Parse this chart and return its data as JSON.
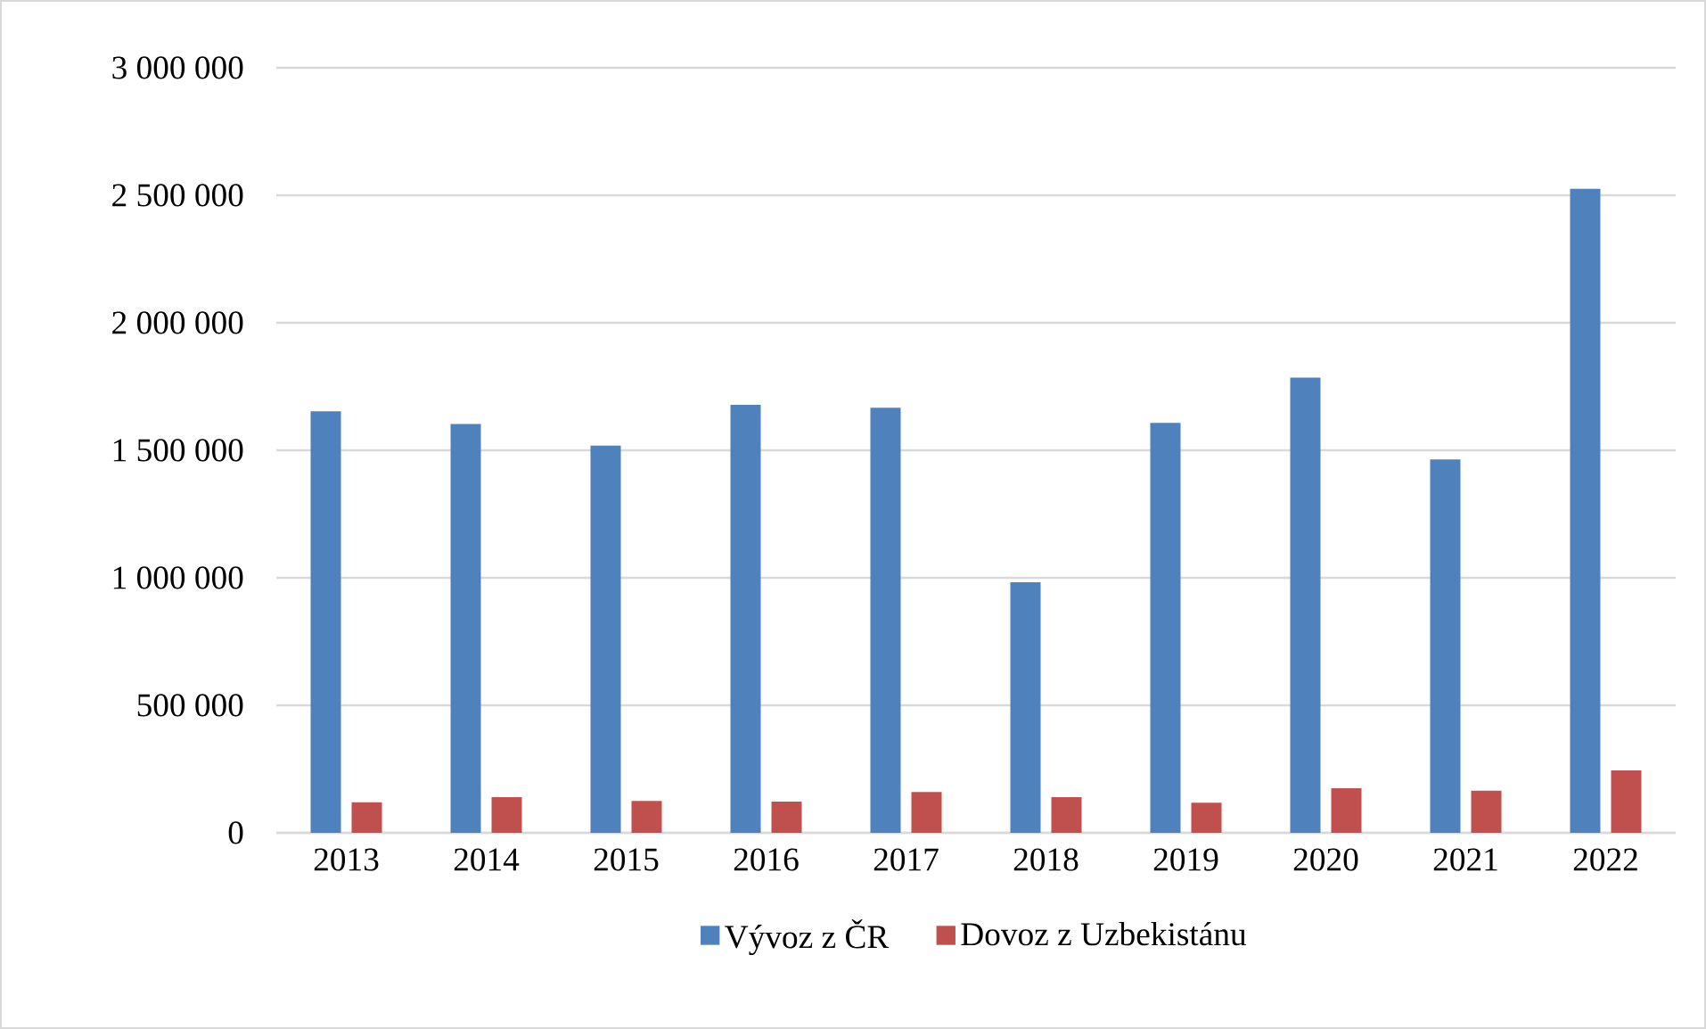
{
  "chart_data": {
    "type": "bar",
    "categories": [
      "2013",
      "2014",
      "2015",
      "2016",
      "2017",
      "2018",
      "2019",
      "2020",
      "2021",
      "2022"
    ],
    "series": [
      {
        "name": "Vývoz z ČR",
        "color": "#4f81bd",
        "values": [
          1653000,
          1603000,
          1518000,
          1678000,
          1667000,
          982000,
          1607000,
          1785000,
          1464000,
          2525000
        ]
      },
      {
        "name": "Dovoz z Uzbekistánu",
        "color": "#c0504d",
        "values": [
          120000,
          140000,
          125000,
          122000,
          160000,
          140000,
          118000,
          175000,
          165000,
          245000
        ]
      }
    ],
    "ylim": [
      0,
      3000000
    ],
    "yticks": [
      0,
      {
        "value": 500000,
        "label": "500 000"
      },
      {
        "value": 1000000,
        "label": "1 000 000"
      },
      {
        "value": 1500000,
        "label": "1 500 000"
      },
      {
        "value": 2000000,
        "label": "2 000 000"
      },
      {
        "value": 2500000,
        "label": "2 500 000"
      },
      {
        "value": 3000000,
        "label": "3 000 000"
      }
    ],
    "grid": "y",
    "legend": "bottom"
  }
}
